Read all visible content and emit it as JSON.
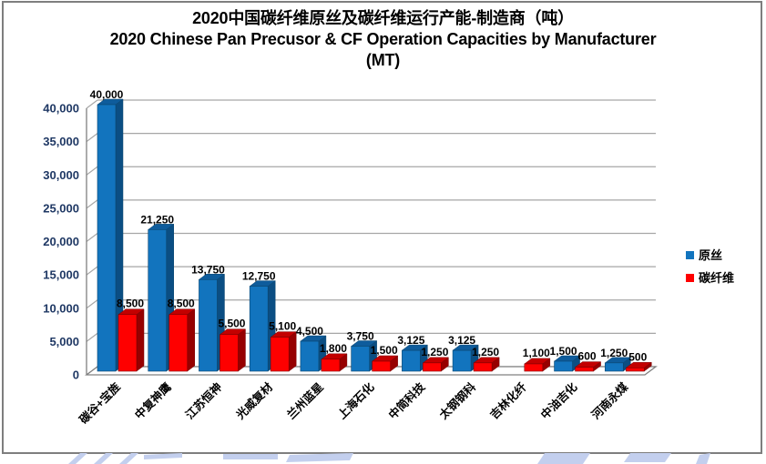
{
  "title": {
    "line1_zh": "2020中国碳纤维原丝及碳纤维运行产能-制造商（吨）",
    "line2_en": "2020 Chinese Pan Precusor & CF Operation Capacities by Manufacturer",
    "line3_unit": "(MT)"
  },
  "chart_data": {
    "type": "bar",
    "subtype": "3d-clustered-column",
    "title": "2020中国碳纤维原丝及碳纤维运行产能-制造商（吨） / 2020 Chinese Pan Precusor & CF Operation Capacities by Manufacturer (MT)",
    "categories": [
      "碳谷+宝旌",
      "中复神鹰",
      "江苏恒神",
      "光威复材",
      "兰州蓝星",
      "上海石化",
      "中简科技",
      "太钢钢科",
      "吉林化纤",
      "中油吉化",
      "河南永煤"
    ],
    "series": [
      {
        "name": "原丝",
        "values": [
          40000,
          21250,
          13750,
          12750,
          4500,
          3750,
          3125,
          3125,
          null,
          1500,
          1250
        ],
        "labels": [
          "40,000",
          "21,250",
          "13,750",
          "12,750",
          "4,500",
          "3,750",
          "3,125",
          "3,125",
          null,
          "1,500",
          "1,250"
        ],
        "palette": {
          "front": "#1274BE",
          "side": "#0B4E83",
          "top": "#0E5C9C",
          "edge": "#0A456F"
        }
      },
      {
        "name": "碳纤维",
        "values": [
          8500,
          8500,
          5500,
          5100,
          1800,
          1500,
          1250,
          1250,
          1100,
          600,
          500
        ],
        "labels": [
          "8,500",
          "8,500",
          "5,500",
          "5,100",
          "1,800",
          "1,500",
          "1,250",
          "1,250",
          "1,100",
          "600",
          "500"
        ],
        "palette": {
          "front": "#FE0000",
          "side": "#960000",
          "top": "#C30000",
          "edge": "#7E0000"
        }
      }
    ],
    "ylim": [
      0,
      40000
    ],
    "ytick_step": 5000,
    "yticks": [
      0,
      5000,
      10000,
      15000,
      20000,
      25000,
      30000,
      35000,
      40000
    ],
    "ytick_labels": [
      "0",
      "5,000",
      "10,000",
      "15,000",
      "20,000",
      "25,000",
      "30,000",
      "35,000",
      "40,000"
    ],
    "grid": true,
    "data_labels": true,
    "legend_position": "right",
    "xlabel": "",
    "ylabel": ""
  },
  "legend": {
    "items": [
      {
        "label": "原丝",
        "color": "#1274BE"
      },
      {
        "label": "碳纤维",
        "color": "#FE0000"
      }
    ]
  },
  "colors": {
    "axis_label": "#1F3864",
    "category_label": "#000000",
    "data_label": "#000000",
    "gridline": "#A6A6A6",
    "axis_line": "#808080",
    "frame_border": "#7E7E7E",
    "background": "#FFFFFF",
    "watermark": "#C3CFEE"
  }
}
